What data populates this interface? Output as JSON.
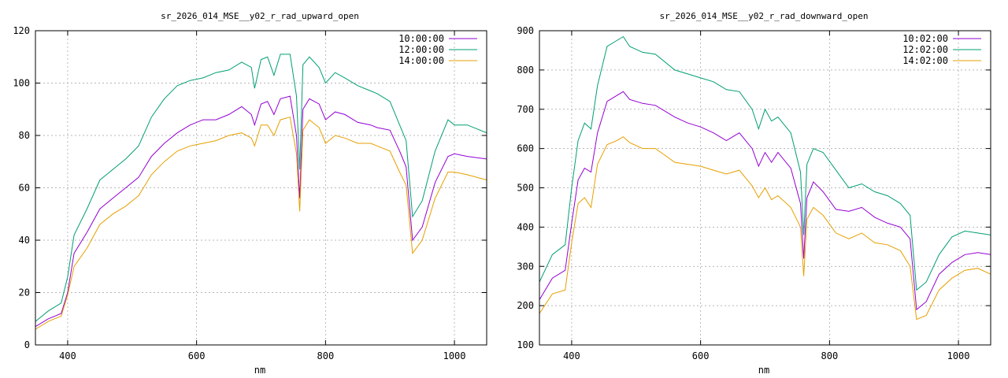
{
  "chart_data": [
    {
      "type": "line",
      "title": "sr_2026_014_MSE__y02_r_rad_upward_open",
      "xlabel": "nm",
      "ylabel": "",
      "xlim": [
        350,
        1050
      ],
      "ylim": [
        0,
        120
      ],
      "xticks": [
        400,
        600,
        800,
        1000
      ],
      "yticks": [
        0,
        20,
        40,
        60,
        80,
        100,
        120
      ],
      "grid": true,
      "legend_position": "top-right",
      "series": [
        {
          "name": "10:00:00",
          "color": "#9400d3",
          "x": [
            350,
            370,
            390,
            400,
            410,
            430,
            450,
            470,
            490,
            510,
            530,
            550,
            570,
            590,
            610,
            630,
            650,
            670,
            685,
            690,
            700,
            710,
            720,
            730,
            745,
            755,
            760,
            765,
            775,
            790,
            800,
            815,
            830,
            850,
            870,
            880,
            900,
            915,
            925,
            935,
            950,
            970,
            990,
            1000,
            1020,
            1050
          ],
          "y": [
            7,
            10,
            12,
            20,
            35,
            43,
            52,
            56,
            60,
            64,
            72,
            77,
            81,
            84,
            86,
            86,
            88,
            91,
            88,
            84,
            92,
            93,
            88,
            94,
            95,
            80,
            56,
            90,
            94,
            92,
            86,
            89,
            88,
            85,
            84,
            83,
            82,
            74,
            68,
            40,
            45,
            62,
            72,
            73,
            72,
            71
          ]
        },
        {
          "name": "12:00:00",
          "color": "#009e73",
          "x": [
            350,
            370,
            390,
            400,
            410,
            430,
            450,
            470,
            490,
            510,
            530,
            550,
            570,
            590,
            610,
            630,
            650,
            670,
            685,
            690,
            700,
            710,
            720,
            730,
            745,
            755,
            760,
            765,
            775,
            790,
            800,
            815,
            830,
            850,
            870,
            880,
            900,
            915,
            925,
            935,
            950,
            970,
            990,
            1000,
            1020,
            1050
          ],
          "y": [
            9,
            13,
            16,
            26,
            42,
            52,
            63,
            67,
            71,
            76,
            87,
            94,
            99,
            101,
            102,
            104,
            105,
            108,
            106,
            98,
            109,
            110,
            103,
            111,
            111,
            95,
            67,
            107,
            110,
            106,
            100,
            104,
            102,
            99,
            97,
            96,
            93,
            84,
            78,
            49,
            55,
            74,
            86,
            84,
            84,
            81
          ]
        },
        {
          "name": "14:00:00",
          "color": "#e69f00",
          "x": [
            350,
            370,
            390,
            400,
            410,
            430,
            450,
            470,
            490,
            510,
            530,
            550,
            570,
            590,
            610,
            630,
            650,
            670,
            685,
            690,
            700,
            710,
            720,
            730,
            745,
            755,
            760,
            765,
            775,
            790,
            800,
            815,
            830,
            850,
            870,
            880,
            900,
            915,
            925,
            935,
            950,
            970,
            990,
            1000,
            1020,
            1050
          ],
          "y": [
            6,
            9,
            11,
            19,
            30,
            37,
            46,
            50,
            53,
            57,
            65,
            70,
            74,
            76,
            77,
            78,
            80,
            81,
            79,
            76,
            84,
            84,
            80,
            86,
            87,
            73,
            51,
            82,
            86,
            83,
            77,
            80,
            79,
            77,
            77,
            76,
            74,
            66,
            61,
            35,
            40,
            56,
            66,
            66,
            65,
            63
          ]
        }
      ]
    },
    {
      "type": "line",
      "title": "sr_2026_014_MSE__y02_r_rad_downward_open",
      "xlabel": "nm",
      "ylabel": "",
      "xlim": [
        350,
        1050
      ],
      "ylim": [
        100,
        900
      ],
      "xticks": [
        400,
        600,
        800,
        1000
      ],
      "yticks": [
        100,
        200,
        300,
        400,
        500,
        600,
        700,
        800,
        900
      ],
      "grid": true,
      "legend_position": "top-right",
      "series": [
        {
          "name": "10:02:00",
          "color": "#9400d3",
          "x": [
            350,
            370,
            390,
            400,
            410,
            420,
            430,
            440,
            455,
            470,
            480,
            490,
            510,
            530,
            560,
            580,
            600,
            620,
            640,
            660,
            680,
            690,
            700,
            710,
            720,
            740,
            755,
            760,
            765,
            775,
            790,
            810,
            830,
            850,
            870,
            890,
            910,
            925,
            935,
            950,
            970,
            990,
            1010,
            1030,
            1050
          ],
          "y": [
            215,
            270,
            290,
            410,
            520,
            550,
            540,
            640,
            720,
            735,
            745,
            725,
            715,
            710,
            680,
            665,
            655,
            640,
            620,
            640,
            600,
            555,
            590,
            565,
            590,
            550,
            460,
            320,
            475,
            515,
            490,
            445,
            440,
            450,
            425,
            410,
            400,
            370,
            190,
            210,
            280,
            310,
            330,
            335,
            330
          ]
        },
        {
          "name": "12:02:00",
          "color": "#009e73",
          "x": [
            350,
            370,
            390,
            400,
            410,
            420,
            430,
            440,
            455,
            470,
            480,
            490,
            510,
            530,
            560,
            580,
            600,
            620,
            640,
            660,
            680,
            690,
            700,
            710,
            720,
            740,
            755,
            760,
            765,
            775,
            790,
            810,
            830,
            850,
            870,
            890,
            910,
            925,
            935,
            950,
            970,
            990,
            1010,
            1030,
            1050
          ],
          "y": [
            260,
            330,
            355,
            500,
            620,
            665,
            650,
            760,
            860,
            875,
            885,
            860,
            845,
            840,
            800,
            790,
            780,
            770,
            750,
            745,
            700,
            650,
            700,
            670,
            680,
            640,
            540,
            380,
            560,
            600,
            590,
            545,
            500,
            510,
            490,
            480,
            460,
            430,
            240,
            260,
            330,
            375,
            390,
            385,
            380
          ]
        },
        {
          "name": "14:02:00",
          "color": "#e69f00",
          "x": [
            350,
            370,
            390,
            400,
            410,
            420,
            430,
            440,
            455,
            470,
            480,
            490,
            510,
            530,
            560,
            580,
            600,
            620,
            640,
            660,
            680,
            690,
            700,
            710,
            720,
            740,
            755,
            760,
            765,
            775,
            790,
            810,
            830,
            850,
            870,
            890,
            910,
            925,
            935,
            950,
            970,
            990,
            1010,
            1030,
            1050
          ],
          "y": [
            180,
            230,
            240,
            360,
            460,
            475,
            450,
            560,
            610,
            620,
            630,
            615,
            600,
            600,
            565,
            560,
            555,
            545,
            535,
            545,
            505,
            475,
            500,
            470,
            480,
            450,
            400,
            275,
            420,
            450,
            430,
            385,
            370,
            385,
            360,
            355,
            340,
            300,
            165,
            175,
            240,
            270,
            290,
            295,
            280
          ]
        }
      ]
    }
  ]
}
